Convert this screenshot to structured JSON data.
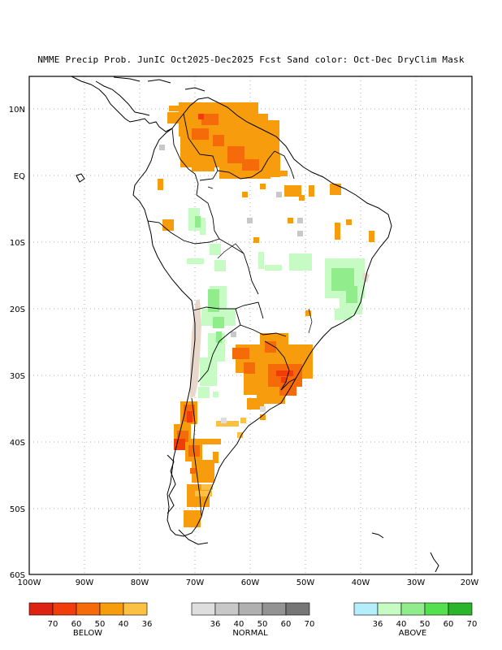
{
  "title": "NMME Precip Prob. JunIC  Oct2025-Dec2025 Fcst  Sand color: Oct-Dec DryClim Mask",
  "map": {
    "lat_labels": [
      "10N",
      "EQ",
      "10S",
      "20S",
      "30S",
      "40S",
      "50S",
      "60S"
    ],
    "lon_labels": [
      "100W",
      "90W",
      "80W",
      "70W",
      "60W",
      "50W",
      "40W",
      "30W",
      "20W"
    ],
    "extent": {
      "lon_min": -100,
      "lon_max": -20,
      "lat_min": -60,
      "lat_max": 15
    },
    "grid": "dotted",
    "dry_mask_color": "#e8d8cc"
  },
  "legends": {
    "below": {
      "label": "BELOW",
      "colors": [
        "#dd2211",
        "#f03d0a",
        "#f56b0a",
        "#f79c0c",
        "#fcc042"
      ],
      "ticks": [
        "70",
        "60",
        "50",
        "40",
        "36"
      ]
    },
    "normal": {
      "label": "NORMAL",
      "colors": [
        "#dedede",
        "#c8c8c8",
        "#b0b0b0",
        "#939393",
        "#767676"
      ],
      "ticks": [
        "36",
        "40",
        "50",
        "60",
        "70"
      ]
    },
    "above": {
      "label": "ABOVE",
      "colors": [
        "#b4eefa",
        "#c6fcc4",
        "#91ed8c",
        "#55e050",
        "#2ab52a"
      ],
      "ticks": [
        "36",
        "40",
        "50",
        "60",
        "70"
      ]
    }
  }
}
